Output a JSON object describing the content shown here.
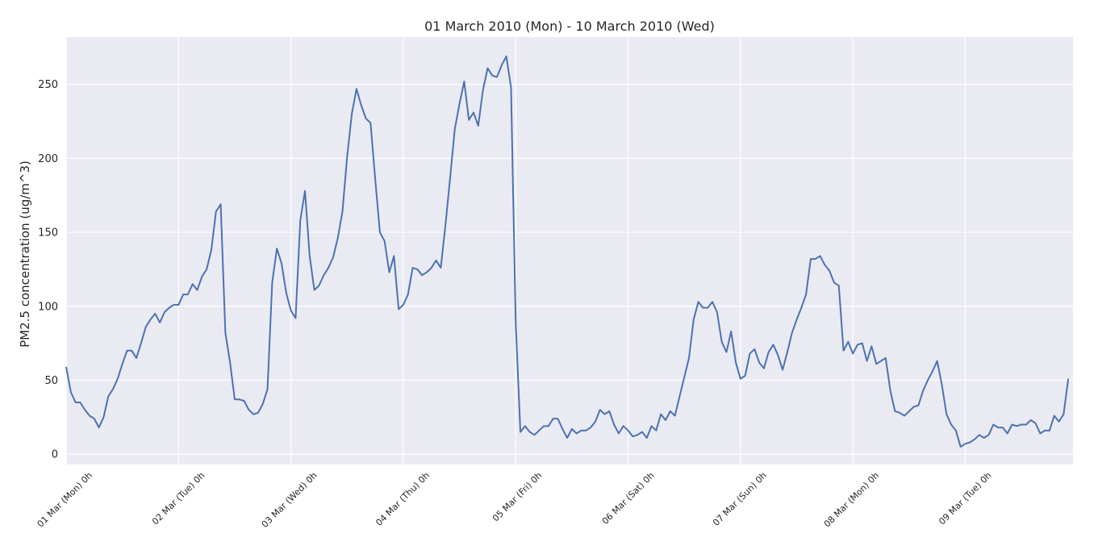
{
  "chart_data": {
    "type": "line",
    "title": "01 March 2010 (Mon) - 10 March 2010 (Wed)",
    "xlabel": "",
    "ylabel": "PM2.5 concentration (ug/m^3)",
    "xlim": [
      0,
      215
    ],
    "ylim": [
      -7,
      282
    ],
    "x_unit": "hours since 01 Mar 2010 0h",
    "grid": true,
    "background": "#eaeaf2",
    "line_color": "#4c72b0",
    "yticks": [
      0,
      50,
      100,
      150,
      200,
      250
    ],
    "xticks": [
      {
        "x": 0,
        "label": "01 Mar (Mon) 0h"
      },
      {
        "x": 24,
        "label": "02 Mar (Tue) 0h"
      },
      {
        "x": 48,
        "label": "03 Mar (Wed) 0h"
      },
      {
        "x": 72,
        "label": "04 Mar (Thu) 0h"
      },
      {
        "x": 96,
        "label": "05 Mar (Fri) 0h"
      },
      {
        "x": 120,
        "label": "06 Mar (Sat) 0h"
      },
      {
        "x": 144,
        "label": "07 Mar (Sun) 0h"
      },
      {
        "x": 168,
        "label": "08 Mar (Mon) 0h"
      },
      {
        "x": 192,
        "label": "09 Mar (Tue) 0h"
      }
    ],
    "series": [
      {
        "values": [
          59,
          42,
          35,
          35,
          30,
          26,
          24,
          18,
          25,
          39,
          44,
          51,
          61,
          70,
          70,
          65,
          75,
          86,
          91,
          95,
          89,
          96,
          99,
          101,
          101,
          108,
          108,
          115,
          111,
          120,
          125,
          138,
          164,
          169,
          82,
          62,
          37,
          37,
          36,
          30,
          27,
          28,
          34,
          44,
          116,
          139,
          129,
          109,
          97,
          92,
          158,
          178,
          134,
          111,
          114,
          121,
          126,
          133,
          146,
          164,
          201,
          230,
          247,
          236,
          227,
          224,
          186,
          150,
          144,
          123,
          134,
          98,
          101,
          108,
          126,
          125,
          121,
          123,
          126,
          131,
          126,
          155,
          187,
          220,
          237,
          252,
          226,
          231,
          222,
          246,
          261,
          256,
          255,
          263,
          269,
          248,
          89,
          15,
          19,
          15,
          13,
          16,
          19,
          19,
          24,
          24,
          17,
          11,
          17,
          14,
          16,
          16,
          18,
          22,
          30,
          27,
          29,
          20,
          14,
          19,
          16,
          12,
          13,
          15,
          11,
          19,
          16,
          27,
          23,
          29,
          26,
          39,
          52,
          65,
          91,
          103,
          99,
          99,
          103,
          96,
          76,
          69,
          83,
          62,
          51,
          53,
          68,
          71,
          62,
          58,
          69,
          74,
          67,
          57,
          69,
          82,
          91,
          99,
          108,
          132,
          132,
          134,
          128,
          124,
          116,
          114,
          70,
          76,
          68,
          74,
          75,
          63,
          73,
          61,
          63,
          65,
          43,
          29,
          28,
          26,
          29,
          32,
          33,
          43,
          50,
          56,
          63,
          47,
          27,
          20,
          16,
          5,
          7,
          8,
          10,
          13,
          11,
          13,
          20,
          18,
          18,
          14,
          20,
          19,
          20,
          20,
          23,
          21,
          14,
          16,
          16,
          26,
          22,
          27,
          51
        ]
      }
    ]
  }
}
